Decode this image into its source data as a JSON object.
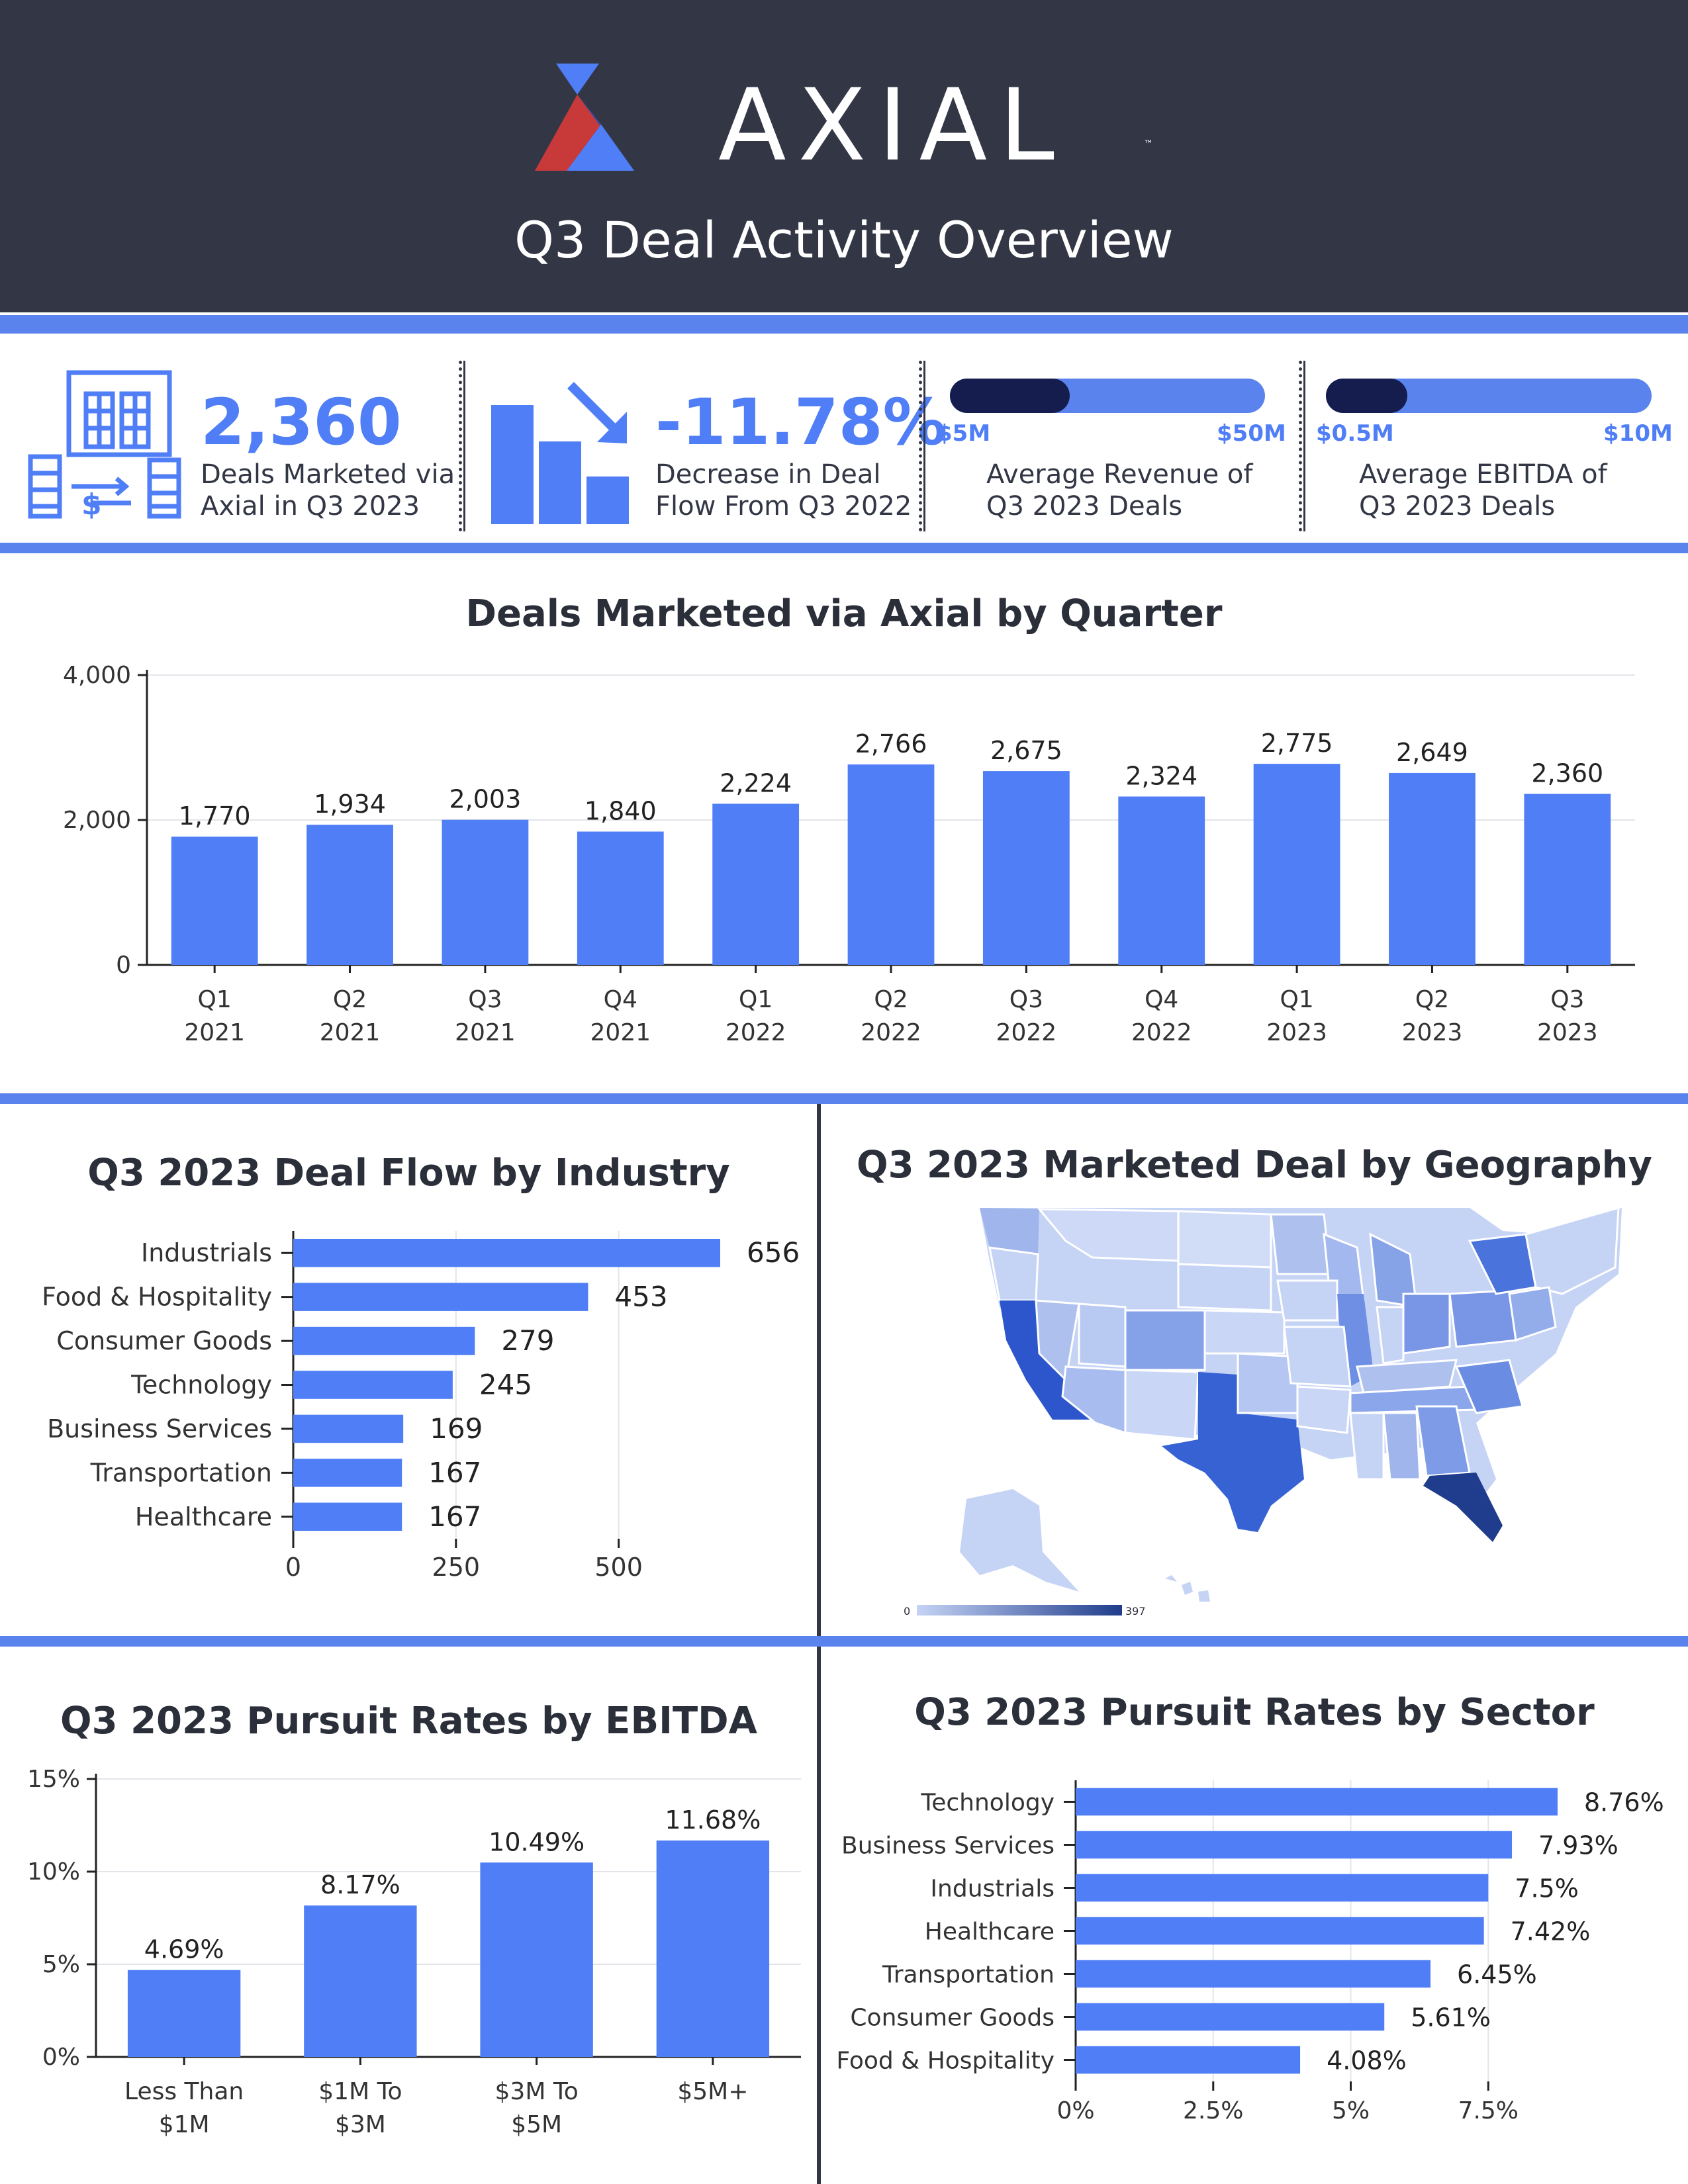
{
  "brand": {
    "name": "AXIAL",
    "tm": "™",
    "colors": {
      "red": "#c8393a",
      "blue": "#4f7ef6",
      "navy": "#333745"
    }
  },
  "header": {
    "subtitle": "Q3 Deal Activity Overview"
  },
  "kpis": {
    "deals": {
      "value": "2,360",
      "label_1": "Deals Marketed via",
      "label_2": "Axial in Q3 2023",
      "icon": "buildings-exchange-icon"
    },
    "decrease": {
      "value": "-11.78%",
      "label_1": "Decrease in Deal",
      "label_2": "Flow From Q3 2022",
      "icon": "bar-chart-down-arrow-icon"
    },
    "revenue": {
      "min": "$5M",
      "max": "$50M",
      "fill_fraction": 0.38,
      "label_1": "Average Revenue of",
      "label_2": "Q3 2023 Deals"
    },
    "ebitda": {
      "min": "$0.5M",
      "max": "$10M",
      "fill_fraction": 0.25,
      "label_1": "Average EBITDA of",
      "label_2": "Q3 2023 Deals"
    }
  },
  "chart_data": [
    {
      "id": "quarterly",
      "type": "bar",
      "title": "Deals Marketed via Axial by Quarter",
      "categories": [
        [
          "Q1",
          "2021"
        ],
        [
          "Q2",
          "2021"
        ],
        [
          "Q3",
          "2021"
        ],
        [
          "Q4",
          "2021"
        ],
        [
          "Q1",
          "2022"
        ],
        [
          "Q2",
          "2022"
        ],
        [
          "Q3",
          "2022"
        ],
        [
          "Q4",
          "2022"
        ],
        [
          "Q1",
          "2023"
        ],
        [
          "Q2",
          "2023"
        ],
        [
          "Q3",
          "2023"
        ]
      ],
      "values": [
        1770,
        1934,
        2003,
        1840,
        2224,
        2766,
        2675,
        2324,
        2775,
        2649,
        2360
      ],
      "value_labels": [
        "1,770",
        "1,934",
        "2,003",
        "1,840",
        "2,224",
        "2,766",
        "2,675",
        "2,324",
        "2,775",
        "2,649",
        "2,360"
      ],
      "ylim": [
        0,
        4000
      ],
      "yticks": [
        0,
        2000,
        4000
      ],
      "ytick_labels": [
        "0",
        "2,000",
        "4,000"
      ],
      "grid": true,
      "color": "#4f7ef6"
    },
    {
      "id": "industry",
      "type": "bar",
      "orientation": "horizontal",
      "title": "Q3 2023 Deal Flow by Industry",
      "categories": [
        "Industrials",
        "Food & Hospitality",
        "Consumer Goods",
        "Technology",
        "Business Services",
        "Transportation",
        "Healthcare"
      ],
      "values": [
        656,
        453,
        279,
        245,
        169,
        167,
        167
      ],
      "value_labels": [
        "656",
        "453",
        "279",
        "245",
        "169",
        "167",
        "167"
      ],
      "xlim": [
        0,
        656
      ],
      "xticks": [
        0,
        250,
        500
      ],
      "xtick_labels": [
        "0",
        "250",
        "500"
      ],
      "grid": true,
      "color": "#4f7ef6"
    },
    {
      "id": "geography",
      "type": "heatmap",
      "title": "Q3 2023 Marketed Deal by Geography",
      "scale_min_label": "0",
      "scale_max_label": "397",
      "scale_min": 0,
      "scale_max": 397,
      "colors": [
        "#c5d3f5",
        "#1f3d8c"
      ]
    },
    {
      "id": "ebitda",
      "type": "bar",
      "title": "Q3 2023 Pursuit Rates by EBITDA",
      "categories": [
        [
          "Less Than",
          "$1M"
        ],
        [
          "$1M To",
          "$3M"
        ],
        [
          "$3M To",
          "$5M"
        ],
        [
          "$5M+",
          ""
        ]
      ],
      "values": [
        4.69,
        8.17,
        10.49,
        11.68
      ],
      "value_labels": [
        "4.69%",
        "8.17%",
        "10.49%",
        "11.68%"
      ],
      "ylim": [
        0,
        15
      ],
      "yticks": [
        0,
        5,
        10,
        15
      ],
      "ytick_labels": [
        "0%",
        "5%",
        "10%",
        "15%"
      ],
      "grid": true,
      "color": "#4f7ef6"
    },
    {
      "id": "sector",
      "type": "bar",
      "orientation": "horizontal",
      "title": "Q3 2023 Pursuit Rates by Sector",
      "categories": [
        "Technology",
        "Business Services",
        "Industrials",
        "Healthcare",
        "Transportation",
        "Consumer Goods",
        "Food & Hospitality"
      ],
      "values": [
        8.76,
        7.93,
        7.5,
        7.42,
        6.45,
        5.61,
        4.08
      ],
      "value_labels": [
        "8.76%",
        "7.93%",
        "7.5%",
        "7.42%",
        "6.45%",
        "5.61%",
        "4.08%"
      ],
      "xlim": [
        0,
        8.76
      ],
      "xticks": [
        0,
        2.5,
        5,
        7.5
      ],
      "xtick_labels": [
        "0%",
        "2.5%",
        "5%",
        "7.5%"
      ],
      "grid": true,
      "color": "#4f7ef6"
    }
  ]
}
